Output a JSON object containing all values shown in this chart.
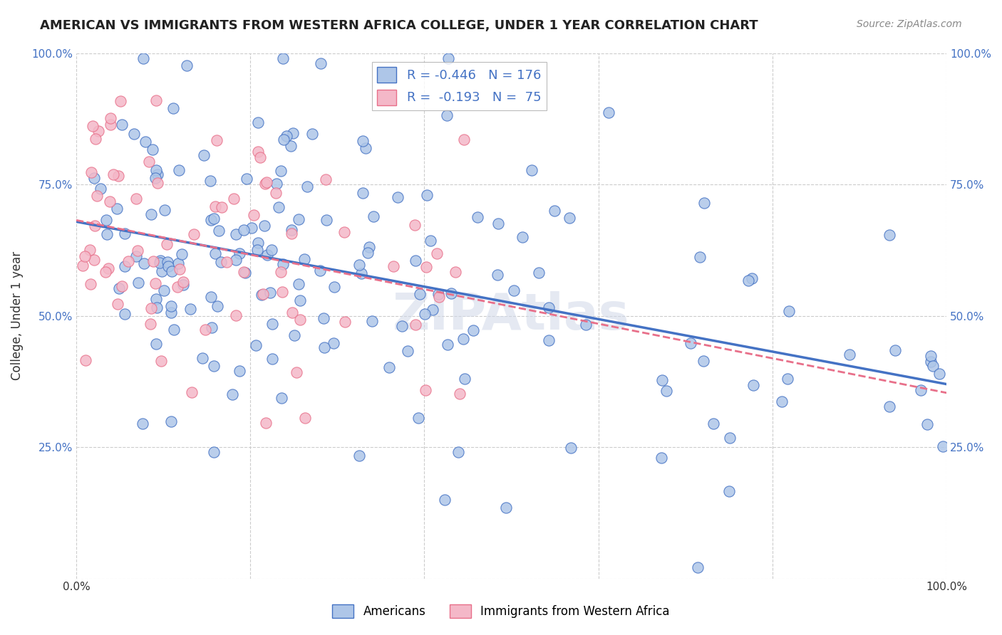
{
  "title": "AMERICAN VS IMMIGRANTS FROM WESTERN AFRICA COLLEGE, UNDER 1 YEAR CORRELATION CHART",
  "source": "Source: ZipAtlas.com",
  "ylabel": "College, Under 1 year",
  "xlim": [
    0.0,
    1.0
  ],
  "ylim": [
    0.0,
    1.0
  ],
  "yticks": [
    0.0,
    0.25,
    0.5,
    0.75,
    1.0
  ],
  "ytick_labels": [
    "",
    "25.0%",
    "50.0%",
    "75.0%",
    "100.0%"
  ],
  "xticks": [
    0.0,
    0.2,
    0.4,
    0.6,
    0.8,
    1.0
  ],
  "xtick_labels": [
    "0.0%",
    "",
    "",
    "",
    "",
    "100.0%"
  ],
  "americans_color": "#aec6e8",
  "americans_edge": "#4472c4",
  "western_africa_color": "#f4b8c8",
  "western_africa_edge": "#e8708a",
  "trendline_americans_color": "#4472c4",
  "trendline_americans_lw": 2.5,
  "trendline_immigrants_color": "#e8708a",
  "trendline_immigrants_lw": 2.0,
  "trendline_immigrants_linestyle": "--",
  "background_color": "#ffffff",
  "grid_color": "#cccccc",
  "r_americans": -0.446,
  "n_americans": 176,
  "r_immigrants": -0.193,
  "n_immigrants": 75
}
